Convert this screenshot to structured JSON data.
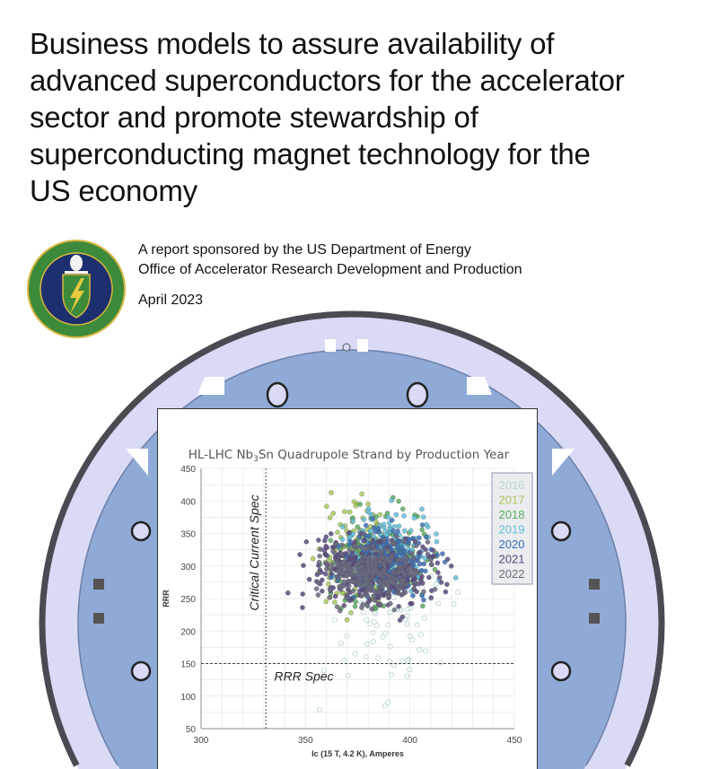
{
  "title_lines": [
    "Business models to assure availability of",
    "advanced superconductors for the accelerator",
    "sector and promote stewardship of",
    "superconducting magnet technology for the",
    "US economy"
  ],
  "sponsor_line1": "A report sponsored by the US Department of Energy",
  "sponsor_line2": "Office of Accelerator Research Development and Production",
  "date": "April 2023",
  "seal": {
    "text": "DEPARTMENT OF ENERGY · UNITED STATES OF AMERICA",
    "colors": {
      "ring": "#3c8a3a",
      "field": "#1d2f6e",
      "gold": "#d8b640"
    }
  },
  "colors": {
    "magnet_outer": "#4a4a52",
    "magnet_ring": "#d9daf6",
    "magnet_core": "#8faad6"
  },
  "chart_data": {
    "type": "scatter",
    "title_pre": "HL-LHC Nb",
    "title_sub": "3",
    "title_post": "Sn Quadrupole Strand by Production Year",
    "xlabel": "Ic (15 T, 4.2 K), Amperes",
    "ylabel": "RRR",
    "xlim": [
      300,
      450
    ],
    "ylim": [
      50,
      450
    ],
    "xticks": [
      300,
      350,
      400,
      450
    ],
    "yticks": [
      50,
      100,
      150,
      200,
      250,
      300,
      350,
      400,
      450
    ],
    "grid": true,
    "legend_placement": "top-right",
    "annotations": [
      {
        "text": "Critical Current Spec",
        "axis": "x",
        "value": 331
      },
      {
        "text": "RRR Spec",
        "axis": "y",
        "value": 150
      }
    ],
    "series": [
      {
        "name": "2016",
        "color": "#bcd6d6",
        "hollow": true,
        "x_range": [
          350,
          430
        ],
        "y_range": [
          60,
          340
        ]
      },
      {
        "name": "2017",
        "color": "#a8c95a",
        "x_range": [
          350,
          400
        ],
        "y_range": [
          190,
          440
        ]
      },
      {
        "name": "2018",
        "color": "#5aab5e",
        "x_range": [
          350,
          420
        ],
        "y_range": [
          200,
          420
        ]
      },
      {
        "name": "2019",
        "color": "#62c0d8",
        "x_range": [
          355,
          425
        ],
        "y_range": [
          230,
          415
        ]
      },
      {
        "name": "2020",
        "color": "#3b6eb4",
        "x_range": [
          355,
          420
        ],
        "y_range": [
          230,
          380
        ]
      },
      {
        "name": "2021",
        "color": "#5b4a7a",
        "x_range": [
          335,
          430
        ],
        "y_range": [
          210,
          370
        ]
      },
      {
        "name": "2022",
        "color": "#6a6a80",
        "x_range": [
          345,
          420
        ],
        "y_range": [
          220,
          360
        ]
      }
    ]
  }
}
